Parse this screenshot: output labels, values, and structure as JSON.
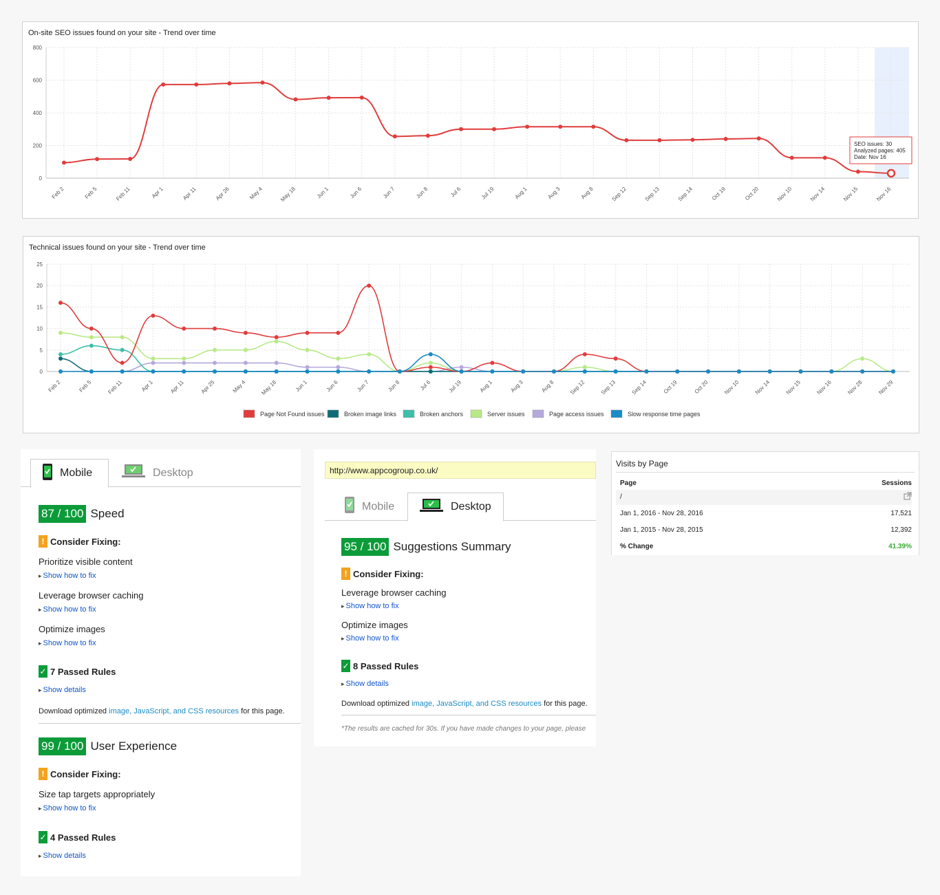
{
  "seo_chart": {
    "title": "On-site SEO issues found on your site - Trend over time",
    "tooltip": [
      "SEO issues: 30",
      "Analyzed pages: 405",
      "Date: Nov 16"
    ]
  },
  "tech_chart": {
    "title": "Technical issues found on your site - Trend over time"
  },
  "chart_data": [
    {
      "type": "line",
      "title": "On-site SEO issues found on your site - Trend over time",
      "categories": [
        "Feb 2",
        "Feb 5",
        "Feb 11",
        "Apr 1",
        "Apr 11",
        "Apr 26",
        "May 4",
        "May 18",
        "Jun 1",
        "Jun 6",
        "Jun 7",
        "Jun 8",
        "Jul 6",
        "Jul 19",
        "Aug 1",
        "Aug 3",
        "Aug 8",
        "Sep 12",
        "Sep 13",
        "Sep 14",
        "Oct 19",
        "Oct 20",
        "Nov 10",
        "Nov 14",
        "Nov 15",
        "Nov 16"
      ],
      "series": [
        {
          "color": "#e03c3c",
          "values": [
            95,
            117,
            118,
            573,
            573,
            580,
            585,
            482,
            492,
            493,
            256,
            260,
            300,
            300,
            315,
            315,
            315,
            232,
            232,
            235,
            240,
            243,
            125,
            125,
            40,
            30
          ]
        }
      ],
      "ylim": [
        0,
        800
      ],
      "yticks": [
        0,
        200,
        400,
        600,
        800
      ],
      "grid": true,
      "highlight": "Nov 16"
    },
    {
      "type": "line",
      "title": "Technical issues found on your site - Trend over time",
      "categories": [
        "Feb 2",
        "Feb 5",
        "Feb 11",
        "Apr 1",
        "Apr 11",
        "Apr 25",
        "May 4",
        "May 18",
        "Jun 1",
        "Jun 6",
        "Jun 7",
        "Jun 8",
        "Jul 6",
        "Jul 19",
        "Aug 1",
        "Aug 3",
        "Aug 8",
        "Sep 12",
        "Sep 13",
        "Sep 14",
        "Oct 19",
        "Oct 20",
        "Nov 10",
        "Nov 14",
        "Nov 15",
        "Nov 16",
        "Nov 28",
        "Nov 29"
      ],
      "series": [
        {
          "name": "Page Not Found issues",
          "color": "#e03c3c",
          "values": [
            16,
            10,
            2,
            13,
            10,
            10,
            9,
            8,
            9,
            9,
            20,
            0,
            1,
            0,
            2,
            0,
            0,
            4,
            3,
            0,
            0,
            0,
            0,
            0,
            0,
            0,
            0,
            0
          ]
        },
        {
          "name": "Broken image links",
          "color": "#0e6b78",
          "values": [
            3,
            0,
            0,
            0,
            0,
            0,
            0,
            0,
            0,
            0,
            0,
            0,
            0,
            0,
            0,
            0,
            0,
            0,
            0,
            0,
            0,
            0,
            0,
            0,
            0,
            0,
            0,
            0
          ]
        },
        {
          "name": "Broken anchors",
          "color": "#3dbfa8",
          "values": [
            4,
            6,
            5,
            0,
            0,
            0,
            0,
            0,
            0,
            0,
            0,
            0,
            0,
            0,
            0,
            0,
            0,
            0,
            0,
            0,
            0,
            0,
            0,
            0,
            0,
            0,
            0,
            0
          ]
        },
        {
          "name": "Server issues",
          "color": "#b8e986",
          "values": [
            9,
            8,
            8,
            3,
            3,
            5,
            5,
            7,
            5,
            3,
            4,
            0,
            2,
            0,
            0,
            0,
            0,
            1,
            0,
            0,
            0,
            0,
            0,
            0,
            0,
            0,
            3,
            0
          ]
        },
        {
          "name": "Page access issues",
          "color": "#b5a8dc",
          "values": [
            0,
            0,
            0,
            2,
            2,
            2,
            2,
            2,
            1,
            1,
            0,
            0,
            0,
            1,
            0,
            0,
            0,
            0,
            0,
            0,
            0,
            0,
            0,
            0,
            0,
            0,
            0,
            0
          ]
        },
        {
          "name": "Slow response time pages",
          "color": "#1a8bc5",
          "values": [
            0,
            0,
            0,
            0,
            0,
            0,
            0,
            0,
            0,
            0,
            0,
            0,
            4,
            0,
            0,
            0,
            0,
            0,
            0,
            0,
            0,
            0,
            0,
            0,
            0,
            0,
            0,
            0
          ]
        }
      ],
      "ylim": [
        0,
        25
      ],
      "yticks": [
        0,
        5,
        10,
        15,
        20,
        25
      ],
      "grid": true,
      "legend": "bottom"
    }
  ],
  "mobile_panel": {
    "tabs": [
      "Mobile",
      "Desktop"
    ],
    "speed": {
      "score": "87 / 100",
      "label": "Speed"
    },
    "consider_fixing": "Consider Fixing:",
    "speed_rules": [
      {
        "name": "Prioritize visible content",
        "link": "Show how to fix"
      },
      {
        "name": "Leverage browser caching",
        "link": "Show how to fix"
      },
      {
        "name": "Optimize images",
        "link": "Show how to fix"
      }
    ],
    "speed_passed": "7 Passed Rules",
    "show_details": "Show details",
    "download_prefix": "Download optimized ",
    "download_link": "image, JavaScript, and CSS resources",
    "download_suffix": " for this page.",
    "ux": {
      "score": "99 / 100",
      "label": "User Experience"
    },
    "ux_rules": [
      {
        "name": "Size tap targets appropriately",
        "link": "Show how to fix"
      }
    ],
    "ux_passed": "4 Passed Rules"
  },
  "desktop_panel": {
    "url": "http://www.appcogroup.co.uk/",
    "tabs": [
      "Mobile",
      "Desktop"
    ],
    "summary": {
      "score": "95 / 100",
      "label": "Suggestions Summary"
    },
    "consider_fixing": "Consider Fixing:",
    "rules": [
      {
        "name": "Leverage browser caching",
        "link": "Show how to fix"
      },
      {
        "name": "Optimize images",
        "link": "Show how to fix"
      }
    ],
    "passed": "8 Passed Rules",
    "show_details": "Show details",
    "download_prefix": "Download optimized ",
    "download_link": "image, JavaScript, and CSS resources",
    "download_suffix": " for this page.",
    "cache_note": "*The results are cached for 30s. If you have made changes to your page, please"
  },
  "visits": {
    "title": "Visits by Page",
    "col_page": "Page",
    "col_sessions": "Sessions",
    "page_value": "/",
    "rows": [
      {
        "label": "Jan 1, 2016 - Nov 28, 2016",
        "value": "17,521"
      },
      {
        "label": "Jan 1, 2015 - Nov 28, 2015",
        "value": "12,392"
      }
    ],
    "change_label": "% Change",
    "change_value": "41.39%",
    "change_color": "#3aaa35"
  }
}
